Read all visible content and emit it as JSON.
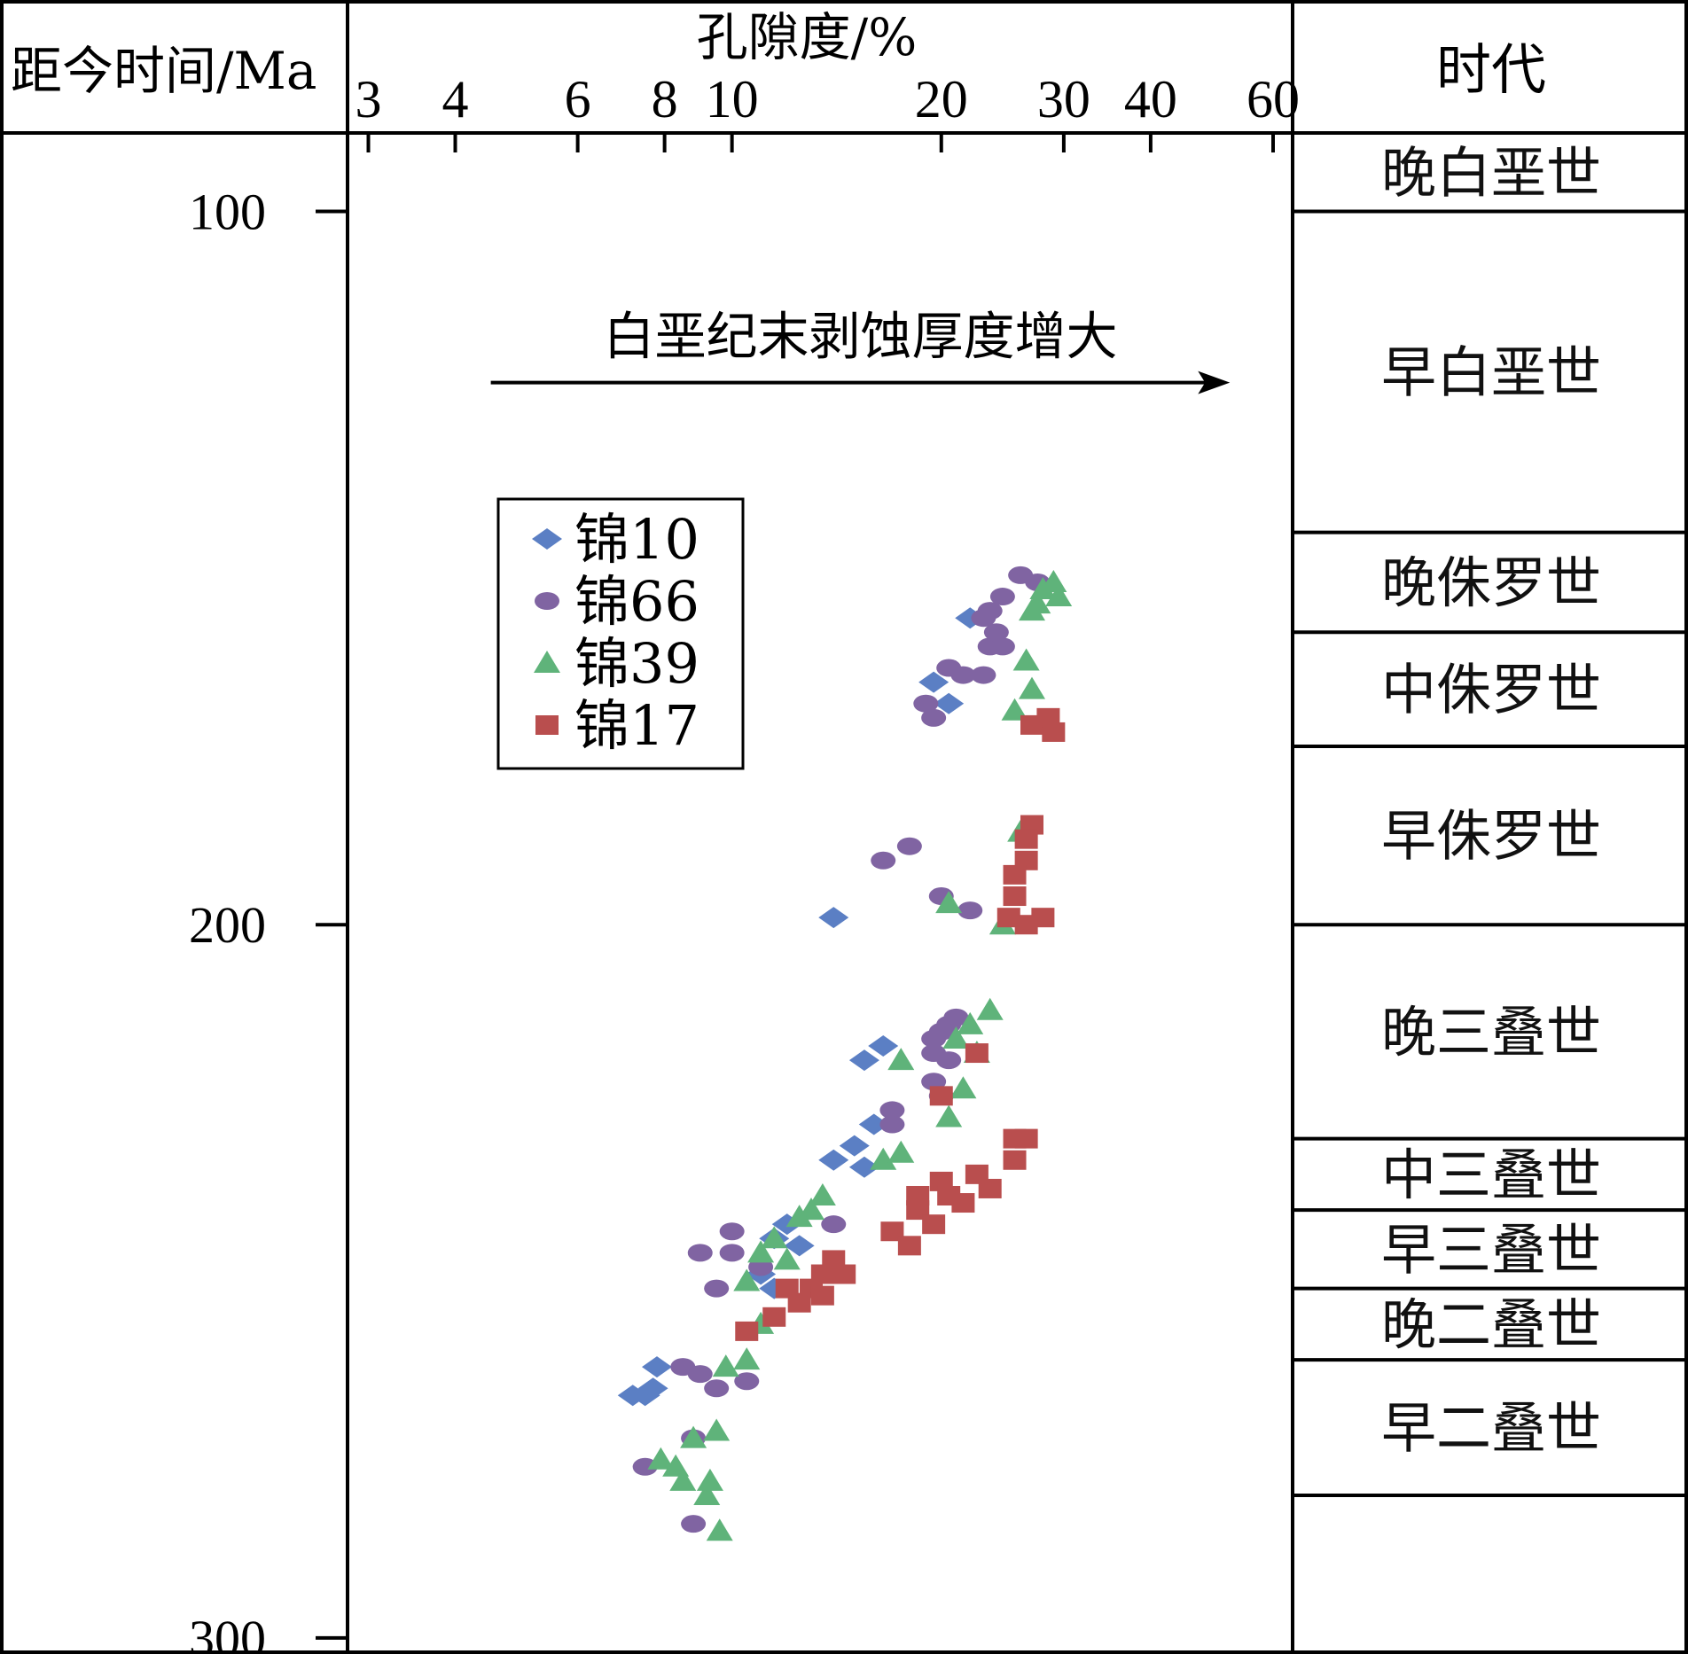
{
  "chart_data": {
    "type": "scatter",
    "title": "",
    "left_column_header": "距今时间/Ma",
    "right_column_header": "时代",
    "xlabel": "孔隙度/%",
    "x_scale": "log",
    "xlim": [
      2.8,
      64
    ],
    "x_ticks": [
      3,
      4,
      6,
      8,
      10,
      20,
      30,
      40,
      60
    ],
    "y_ticks": [
      100,
      200,
      300
    ],
    "ylim": [
      89,
      302
    ],
    "y_inverted": true,
    "annotation": {
      "text": "白垩纪末剥蚀厚度增大",
      "arrow_from_x": 4.5,
      "arrow_to_x": 52,
      "arrow_y": 124
    },
    "periods": [
      {
        "name": "晚白垩世",
        "from": 89,
        "to": 100
      },
      {
        "name": "早白垩世",
        "from": 100,
        "to": 145
      },
      {
        "name": "晚侏罗世",
        "from": 145,
        "to": 159
      },
      {
        "name": "中侏罗世",
        "from": 159,
        "to": 175
      },
      {
        "name": "早侏罗世",
        "from": 175,
        "to": 200
      },
      {
        "name": "晚三叠世",
        "from": 200,
        "to": 230
      },
      {
        "name": "中三叠世",
        "from": 230,
        "to": 240
      },
      {
        "name": "早三叠世",
        "from": 240,
        "to": 251
      },
      {
        "name": "晚二叠世",
        "from": 251,
        "to": 261
      },
      {
        "name": "早二叠世",
        "from": 261,
        "to": 280
      },
      {
        "name": "",
        "from": 280,
        "to": 302
      }
    ],
    "legend": {
      "position": "upper-left",
      "box": true
    },
    "series": [
      {
        "name": "锦10",
        "marker": "diamond",
        "color": "#5b7fc4",
        "points": [
          [
            22,
            157
          ],
          [
            19.5,
            166
          ],
          [
            20.5,
            169
          ],
          [
            14,
            199
          ],
          [
            16.5,
            217
          ],
          [
            15.5,
            219
          ],
          [
            16,
            228
          ],
          [
            15,
            231
          ],
          [
            14,
            233
          ],
          [
            15.5,
            234
          ],
          [
            12,
            242
          ],
          [
            11.5,
            244
          ],
          [
            12.5,
            245
          ],
          [
            11,
            249
          ],
          [
            11.5,
            251
          ],
          [
            7.8,
            262
          ],
          [
            7.2,
            266
          ],
          [
            7.5,
            266
          ],
          [
            7.7,
            265
          ]
        ]
      },
      {
        "name": "锦66",
        "marker": "circle",
        "color": "#8064a2",
        "points": [
          [
            26,
            151
          ],
          [
            27.5,
            152
          ],
          [
            24.5,
            154
          ],
          [
            23.5,
            156
          ],
          [
            23,
            157
          ],
          [
            24,
            159
          ],
          [
            23.5,
            161
          ],
          [
            24.5,
            161
          ],
          [
            20.5,
            164
          ],
          [
            21.5,
            165
          ],
          [
            23,
            165
          ],
          [
            19,
            169
          ],
          [
            19.5,
            171
          ],
          [
            18,
            189
          ],
          [
            16.5,
            191
          ],
          [
            20,
            196
          ],
          [
            22,
            198
          ],
          [
            21,
            213
          ],
          [
            20.5,
            214
          ],
          [
            20,
            215
          ],
          [
            19.5,
            216
          ],
          [
            19.5,
            218
          ],
          [
            20.5,
            219
          ],
          [
            19.5,
            222
          ],
          [
            20,
            224
          ],
          [
            17,
            226
          ],
          [
            17,
            228
          ],
          [
            10,
            243
          ],
          [
            14,
            242
          ],
          [
            9,
            246
          ],
          [
            10,
            246
          ],
          [
            11,
            248
          ],
          [
            9.5,
            251
          ],
          [
            8.5,
            262
          ],
          [
            9,
            263
          ],
          [
            10.5,
            264
          ],
          [
            9.5,
            265
          ],
          [
            8.8,
            272
          ],
          [
            7.5,
            276
          ],
          [
            8.8,
            284
          ]
        ]
      },
      {
        "name": "锦39",
        "marker": "triangle",
        "color": "#5fb37a",
        "points": [
          [
            29,
            152
          ],
          [
            28,
            153
          ],
          [
            29.5,
            154
          ],
          [
            27.5,
            155
          ],
          [
            27,
            156
          ],
          [
            26.5,
            163
          ],
          [
            27,
            167
          ],
          [
            25.5,
            170
          ],
          [
            26,
            187
          ],
          [
            20.5,
            197
          ],
          [
            24.5,
            200
          ],
          [
            23.5,
            212
          ],
          [
            22,
            214
          ],
          [
            21,
            216
          ],
          [
            22.5,
            218
          ],
          [
            17.5,
            219
          ],
          [
            21.5,
            223
          ],
          [
            20.5,
            227
          ],
          [
            16.5,
            233
          ],
          [
            17.5,
            232
          ],
          [
            13.5,
            238
          ],
          [
            13,
            240
          ],
          [
            12.5,
            241
          ],
          [
            11.5,
            244
          ],
          [
            11,
            246
          ],
          [
            12,
            247
          ],
          [
            10.5,
            250
          ],
          [
            11,
            256
          ],
          [
            10.5,
            261
          ],
          [
            9.8,
            262
          ],
          [
            9.5,
            271
          ],
          [
            8.8,
            272
          ],
          [
            7.9,
            275
          ],
          [
            8.3,
            276
          ],
          [
            8.5,
            278
          ],
          [
            9.3,
            278
          ],
          [
            9.2,
            280
          ],
          [
            9.6,
            285
          ]
        ]
      },
      {
        "name": "锦17",
        "marker": "square",
        "color": "#b94e4e",
        "points": [
          [
            27,
            172
          ],
          [
            28.5,
            171
          ],
          [
            29,
            173
          ],
          [
            27,
            186
          ],
          [
            26.5,
            188
          ],
          [
            26.5,
            191
          ],
          [
            25.5,
            193
          ],
          [
            25.5,
            196
          ],
          [
            25,
            199
          ],
          [
            26.5,
            200
          ],
          [
            28,
            199
          ],
          [
            22.5,
            218
          ],
          [
            20,
            224
          ],
          [
            25.5,
            230
          ],
          [
            26.5,
            230
          ],
          [
            25.5,
            233
          ],
          [
            22.5,
            235
          ],
          [
            23.5,
            237
          ],
          [
            21.5,
            239
          ],
          [
            20,
            236
          ],
          [
            20.5,
            238
          ],
          [
            18.5,
            238
          ],
          [
            18.5,
            240
          ],
          [
            19.5,
            242
          ],
          [
            17,
            243
          ],
          [
            18,
            245
          ],
          [
            14,
            247
          ],
          [
            13.5,
            249
          ],
          [
            14.5,
            249
          ],
          [
            13,
            251
          ],
          [
            12,
            251
          ],
          [
            13.5,
            252
          ],
          [
            12.5,
            253
          ],
          [
            11.5,
            255
          ],
          [
            10.5,
            257
          ]
        ]
      }
    ]
  }
}
